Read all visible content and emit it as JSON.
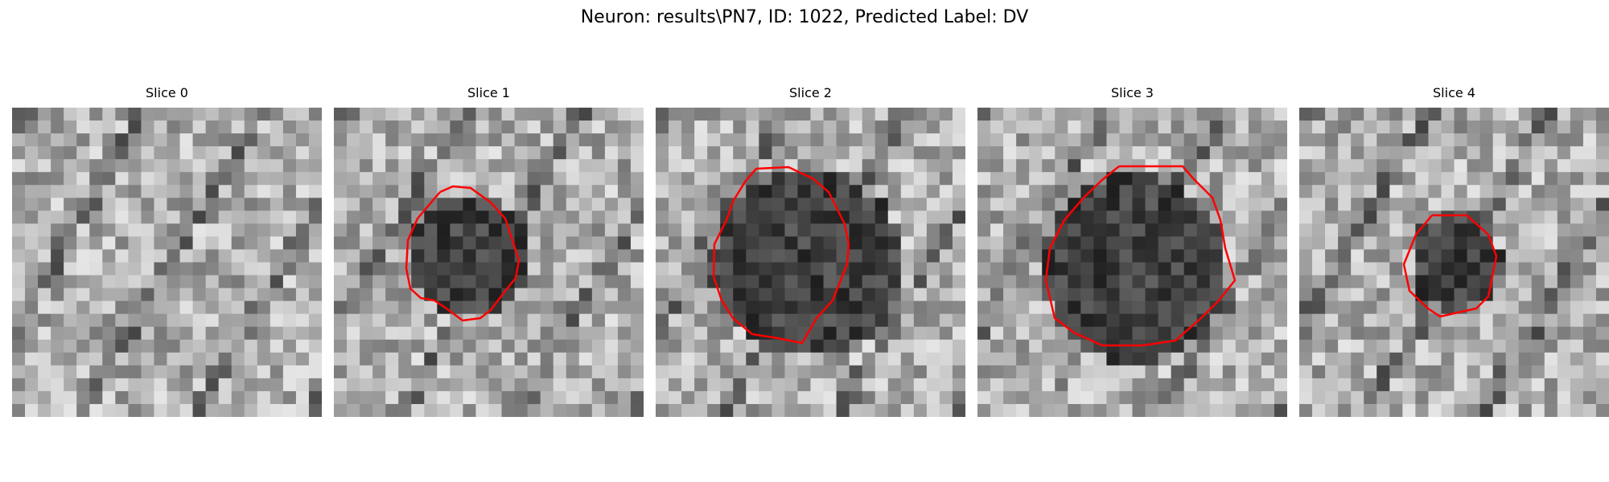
{
  "figure": {
    "title": "Neuron: results\\PN7, ID: 1022, Predicted Label: DV"
  },
  "panels": [
    {
      "title": "Slice 0",
      "has_contour": false
    },
    {
      "title": "Slice 1",
      "has_contour": true
    },
    {
      "title": "Slice 2",
      "has_contour": true
    },
    {
      "title": "Slice 3",
      "has_contour": true
    },
    {
      "title": "Slice 4",
      "has_contour": true
    }
  ],
  "colors": {
    "contour": "#ff0000",
    "background": "#ffffff"
  }
}
